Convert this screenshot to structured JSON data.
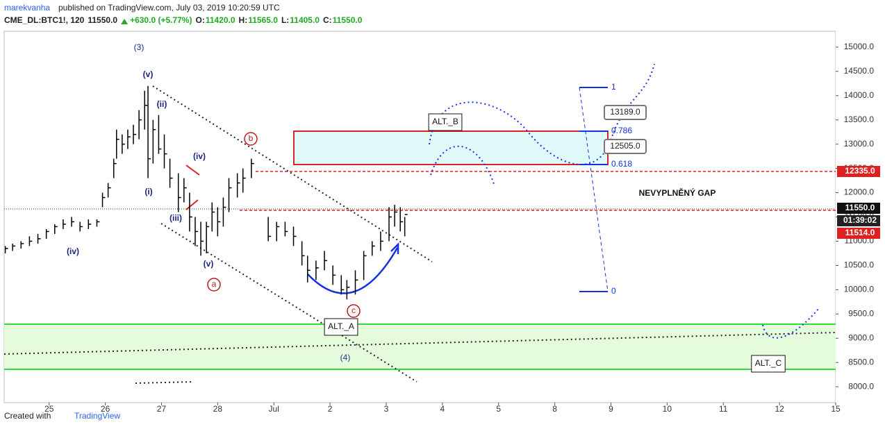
{
  "header": {
    "author": "marekvanha",
    "published": "published on TradingView.com, July 03, 2019 10:20:59 UTC",
    "symbol": "CME_DL:BTC1!, 120",
    "last": "11550.0",
    "change": "+630.0 (+5.77%)",
    "o_label": "O:",
    "o": "11420.0",
    "h_label": "H:",
    "h": "11565.0",
    "l_label": "L:",
    "l": "11405.0",
    "c_label": "C:",
    "c": "11550.0"
  },
  "footer": {
    "created": "Created with",
    "brand": "TradingView"
  },
  "chart_data": {
    "type": "ohlc",
    "color": "#000000",
    "x": [
      -0.78,
      -0.65,
      -0.5,
      -0.35,
      -0.2,
      -0.05,
      0.1,
      0.25,
      0.4,
      0.55,
      0.7,
      0.85,
      0.95,
      1.05,
      1.15,
      1.2,
      1.3,
      1.4,
      1.5,
      1.6,
      1.7,
      1.76,
      1.85,
      1.95,
      2.05,
      2.15,
      2.3,
      2.4,
      2.5,
      2.6,
      2.7,
      2.8,
      2.9,
      3.0,
      3.1,
      3.2,
      3.35,
      3.45,
      3.6,
      3.9,
      4.05,
      4.2,
      4.35,
      4.5,
      4.6,
      4.75,
      4.9,
      5.05,
      5.2,
      5.3,
      5.45,
      5.6,
      5.75,
      5.9,
      6.05,
      6.15,
      6.25,
      6.33
    ],
    "high": [
      10900,
      10950,
      11000,
      11100,
      11150,
      11250,
      11350,
      11450,
      11500,
      11400,
      11450,
      11450,
      12000,
      12200,
      12700,
      13300,
      13200,
      13300,
      13400,
      13700,
      14100,
      14200,
      13500,
      13600,
      13200,
      12700,
      12400,
      12300,
      12000,
      11500,
      11400,
      11400,
      11800,
      11700,
      11900,
      12300,
      12400,
      12500,
      12700,
      11500,
      11400,
      11400,
      11300,
      11000,
      10700,
      10600,
      10800,
      10500,
      10300,
      10200,
      10400,
      10800,
      11000,
      11200,
      11700,
      11750,
      11700,
      11500
    ],
    "low": [
      10750,
      10800,
      10850,
      10900,
      10950,
      11050,
      11150,
      11250,
      11300,
      11200,
      11250,
      11300,
      11700,
      11900,
      12300,
      12700,
      12800,
      12900,
      13000,
      13100,
      13300,
      12300,
      12600,
      12800,
      12500,
      12100,
      11600,
      11800,
      11200,
      10900,
      10700,
      10750,
      11200,
      11100,
      11300,
      11600,
      11900,
      12000,
      12300,
      11000,
      11000,
      11100,
      10900,
      10500,
      10150,
      10200,
      10400,
      10100,
      9900,
      9800,
      9900,
      10200,
      10700,
      10800,
      11000,
      11300,
      11200,
      11100
    ],
    "close": [
      10850,
      10900,
      10950,
      11000,
      11050,
      11200,
      11300,
      11350,
      11400,
      11300,
      11350,
      11400,
      11900,
      12100,
      12600,
      13100,
      13000,
      13150,
      13200,
      13500,
      13800,
      12700,
      13300,
      12900,
      12800,
      12300,
      11900,
      12100,
      11500,
      11200,
      11000,
      11300,
      11600,
      11400,
      11700,
      12100,
      12200,
      12300,
      12600,
      11100,
      11300,
      11200,
      11100,
      10700,
      10400,
      10450,
      10600,
      10300,
      10000,
      10050,
      10200,
      10700,
      10900,
      11000,
      11500,
      11600,
      11400,
      11550
    ],
    "xlim": [
      -0.8,
      14
    ],
    "xticks": [
      {
        "value": 0,
        "label": "25"
      },
      {
        "value": 1,
        "label": "26"
      },
      {
        "value": 2,
        "label": "27"
      },
      {
        "value": 3,
        "label": "28"
      },
      {
        "value": 4,
        "label": "Jul"
      },
      {
        "value": 5,
        "label": "2"
      },
      {
        "value": 6,
        "label": "3"
      },
      {
        "value": 7,
        "label": "4"
      },
      {
        "value": 8,
        "label": "5"
      },
      {
        "value": 9,
        "label": "8"
      },
      {
        "value": 10,
        "label": "9"
      },
      {
        "value": 11,
        "label": "10"
      },
      {
        "value": 12,
        "label": "11"
      },
      {
        "value": 13,
        "label": "12"
      },
      {
        "value": 14,
        "label": "15"
      }
    ],
    "ylim": [
      7673,
      15327
    ],
    "yticks": [
      {
        "value": 8000,
        "label": "8000.0"
      },
      {
        "value": 8500,
        "label": "8500.0"
      },
      {
        "value": 9000,
        "label": "9000.0"
      },
      {
        "value": 9500,
        "label": "9500.0"
      },
      {
        "value": 10000,
        "label": "10000.0"
      },
      {
        "value": 10500,
        "label": "10500.0"
      },
      {
        "value": 11000,
        "label": "11000.0"
      },
      {
        "value": 11500,
        "label": "11500.0"
      },
      {
        "value": 12000,
        "label": "12000.0"
      },
      {
        "value": 12500,
        "label": "12500.0"
      },
      {
        "value": 13000,
        "label": "13000.0"
      },
      {
        "value": 13500,
        "label": "13500.0"
      },
      {
        "value": 14000,
        "label": "14000.0"
      },
      {
        "value": 14500,
        "label": "14500.0"
      },
      {
        "value": 15000,
        "label": "15000.0"
      }
    ],
    "price_tags": [
      "12335.0",
      "11550.0",
      "01:39:02",
      "11514.0"
    ],
    "annotations": [
      "(3)",
      "(v)",
      "(ii)",
      "(i)",
      "(iv)",
      "(iii)",
      "(v)",
      "(iv)",
      "(4)",
      "a",
      "b",
      "c",
      "ALT._B",
      "ALT._A",
      "ALT._C",
      "NEVYPLNĚNÝ GAP",
      "1",
      "0.786",
      "0.618",
      "0",
      "13189.0",
      "12505.0"
    ]
  }
}
